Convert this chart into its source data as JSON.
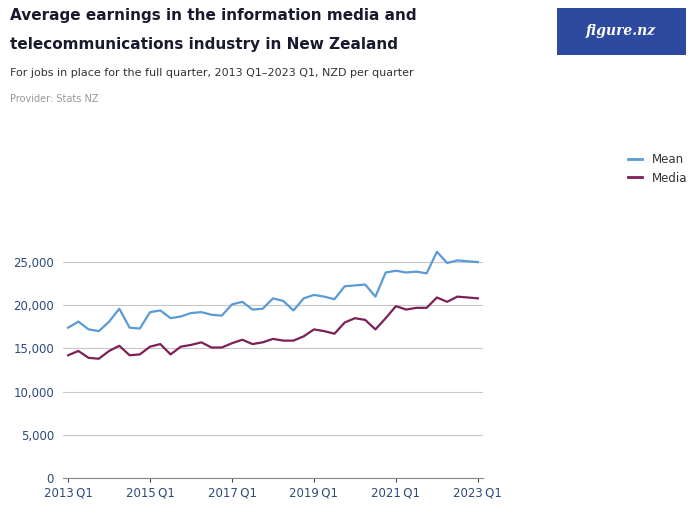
{
  "title_line1": "Average earnings in the information media and",
  "title_line2": "telecommunications industry in New Zealand",
  "subtitle": "For jobs in place for the full quarter, 2013 Q1–2023 Q1, NZD per quarter",
  "provider": "Provider: Stats NZ",
  "legend_mean": "Mean",
  "legend_median": "Media",
  "mean_color": "#5B9BD5",
  "median_color": "#7B2157",
  "background_color": "#FFFFFF",
  "grid_color": "#C8C8C8",
  "logo_bg_color": "#2E4A9E",
  "xtick_labels": [
    "2013 Q1",
    "2015 Q1",
    "2017 Q1",
    "2019 Q1",
    "2021 Q1",
    "2023 Q1"
  ],
  "xtick_positions": [
    0,
    8,
    16,
    24,
    32,
    40
  ],
  "ylim": [
    0,
    28000
  ],
  "ytick_values": [
    0,
    5000,
    10000,
    15000,
    20000,
    25000
  ],
  "mean_values": [
    17400,
    18100,
    17200,
    17000,
    18100,
    19600,
    17400,
    17300,
    19200,
    19400,
    18500,
    18700,
    19100,
    19200,
    18900,
    18800,
    20100,
    20400,
    19500,
    19600,
    20800,
    20500,
    19400,
    20800,
    21200,
    21000,
    20700,
    22200,
    22300,
    22400,
    21000,
    23800,
    24000,
    23800,
    23900,
    23700,
    26200,
    24900,
    25200,
    25100,
    25000
  ],
  "median_values": [
    14200,
    14700,
    13900,
    13800,
    14700,
    15300,
    14200,
    14300,
    15200,
    15500,
    14300,
    15200,
    15400,
    15700,
    15100,
    15100,
    15600,
    16000,
    15500,
    15700,
    16100,
    15900,
    15900,
    16400,
    17200,
    17000,
    16700,
    18000,
    18500,
    18300,
    17200,
    18500,
    19900,
    19500,
    19700,
    19700,
    20900,
    20400,
    21000,
    20900,
    20800
  ]
}
